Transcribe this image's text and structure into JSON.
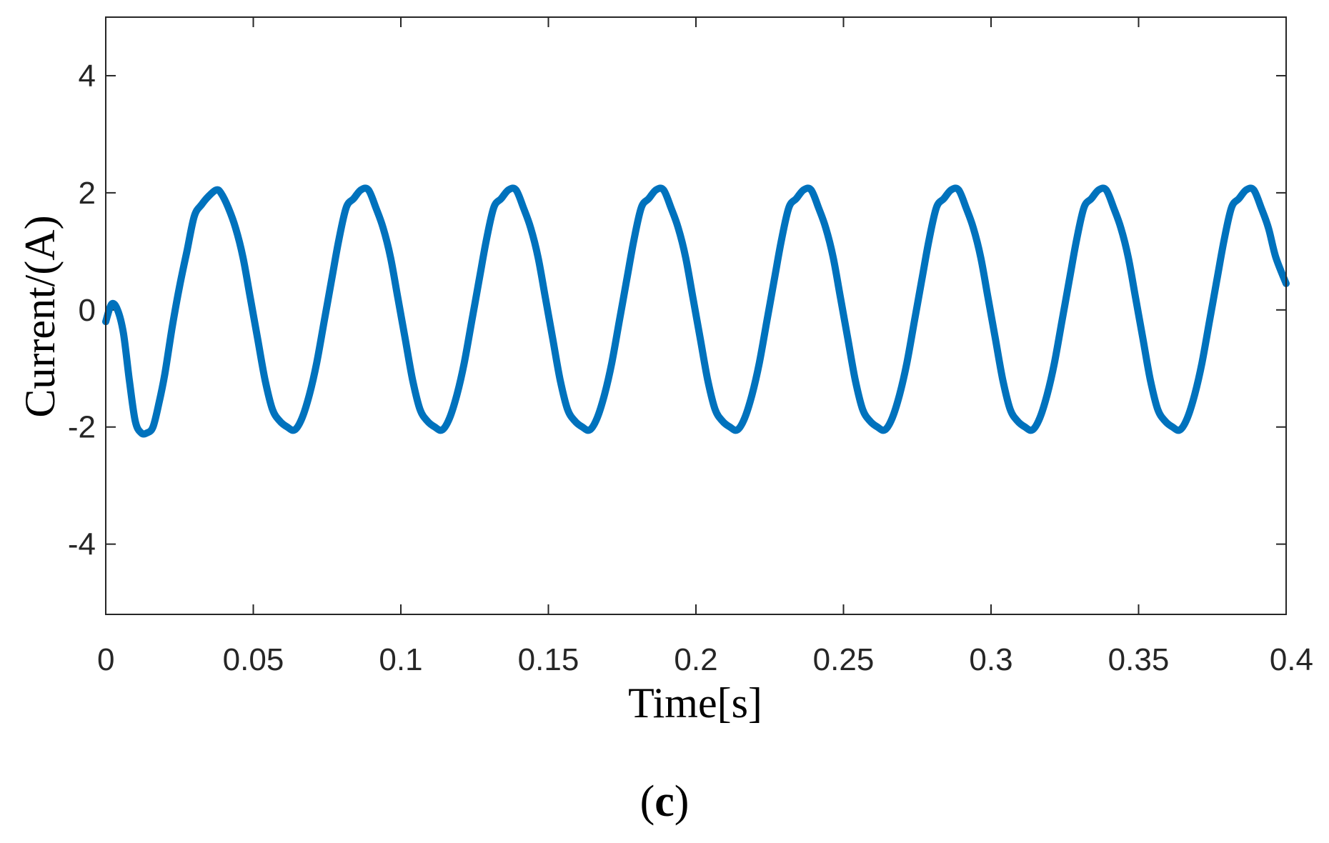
{
  "chart_data": {
    "type": "line",
    "title": "",
    "xlabel": "Time[s]",
    "ylabel": "Current/(A)",
    "xlim": [
      0,
      0.4
    ],
    "ylim": [
      -5.2,
      5
    ],
    "x_ticks": [
      0,
      0.05,
      0.1,
      0.15,
      0.2,
      0.25,
      0.3,
      0.35,
      0.4
    ],
    "x_tick_labels": [
      "0",
      "0.05",
      "0.1",
      "0.15",
      "0.2",
      "0.25",
      "0.3",
      "0.35",
      "0.4"
    ],
    "y_ticks": [
      4,
      2,
      0,
      -2,
      -4
    ],
    "y_tick_labels": [
      "4",
      "2",
      "0",
      "-2",
      "-4"
    ],
    "grid": false,
    "line_color": "#0072BD",
    "series": [
      {
        "x": [
          0,
          0.002,
          0.004,
          0.006,
          0.008,
          0.01,
          0.012,
          0.014,
          0.016,
          0.018,
          0.02,
          0.0225,
          0.025,
          0.0275,
          0.03,
          0.0325,
          0.035,
          0.0375,
          0.039,
          0.0415,
          0.044,
          0.0465,
          0.049,
          0.0515,
          0.054,
          0.0565,
          0.059,
          0.0615,
          0.064,
          0.0665,
          0.069,
          0.0715,
          0.074,
          0.0765,
          0.079,
          0.0815,
          0.084,
          0.0865,
          0.089,
          0.0915,
          0.094,
          0.0965,
          0.099,
          0.1015,
          0.104,
          0.1065,
          0.109,
          0.1115,
          0.114,
          0.1165,
          0.119,
          0.1215,
          0.124,
          0.1265,
          0.129,
          0.1315,
          0.134,
          0.1365,
          0.139,
          0.1415,
          0.144,
          0.1465,
          0.149,
          0.1515,
          0.154,
          0.1565,
          0.159,
          0.1615,
          0.164,
          0.1665,
          0.169,
          0.1715,
          0.174,
          0.1765,
          0.179,
          0.1815,
          0.184,
          0.1865,
          0.189,
          0.1915,
          0.194,
          0.1965,
          0.199,
          0.2015,
          0.204,
          0.2065,
          0.209,
          0.2115,
          0.214,
          0.2165,
          0.219,
          0.2215,
          0.224,
          0.2265,
          0.229,
          0.2315,
          0.234,
          0.2365,
          0.239,
          0.2415,
          0.244,
          0.2465,
          0.249,
          0.2515,
          0.254,
          0.2565,
          0.259,
          0.2615,
          0.264,
          0.2665,
          0.269,
          0.2715,
          0.274,
          0.2765,
          0.279,
          0.2815,
          0.284,
          0.2865,
          0.289,
          0.2915,
          0.294,
          0.2965,
          0.299,
          0.3015,
          0.304,
          0.3065,
          0.309,
          0.3115,
          0.314,
          0.3165,
          0.319,
          0.3215,
          0.324,
          0.3265,
          0.329,
          0.3315,
          0.334,
          0.3365,
          0.339,
          0.3415,
          0.344,
          0.3465,
          0.349,
          0.3515,
          0.354,
          0.3565,
          0.359,
          0.3615,
          0.364,
          0.3665,
          0.369,
          0.3715,
          0.374,
          0.3765,
          0.379,
          0.3815,
          0.384,
          0.3865,
          0.389,
          0.3915,
          0.394,
          0.3965,
          0.4
        ],
        "y": [
          -0.2,
          0.1,
          0.0,
          -0.4,
          -1.2,
          -1.9,
          -2.1,
          -2.1,
          -2.0,
          -1.6,
          -1.1,
          -0.3,
          0.4,
          1.0,
          1.6,
          1.8,
          1.95,
          2.05,
          2.0,
          1.75,
          1.4,
          0.9,
          0.2,
          -0.5,
          -1.2,
          -1.7,
          -1.9,
          -2.0,
          -2.05,
          -1.85,
          -1.45,
          -0.9,
          -0.2,
          0.5,
          1.2,
          1.75,
          1.9,
          2.05,
          2.05,
          1.75,
          1.4,
          0.9,
          0.2,
          -0.5,
          -1.2,
          -1.7,
          -1.9,
          -2.0,
          -2.05,
          -1.85,
          -1.45,
          -0.9,
          -0.2,
          0.5,
          1.2,
          1.75,
          1.9,
          2.05,
          2.05,
          1.75,
          1.4,
          0.9,
          0.2,
          -0.5,
          -1.2,
          -1.7,
          -1.9,
          -2.0,
          -2.05,
          -1.85,
          -1.45,
          -0.9,
          -0.2,
          0.5,
          1.2,
          1.75,
          1.9,
          2.05,
          2.05,
          1.75,
          1.4,
          0.9,
          0.2,
          -0.5,
          -1.2,
          -1.7,
          -1.9,
          -2.0,
          -2.05,
          -1.85,
          -1.45,
          -0.9,
          -0.2,
          0.5,
          1.2,
          1.75,
          1.9,
          2.05,
          2.05,
          1.75,
          1.4,
          0.9,
          0.2,
          -0.5,
          -1.2,
          -1.7,
          -1.9,
          -2.0,
          -2.05,
          -1.85,
          -1.45,
          -0.9,
          -0.2,
          0.5,
          1.2,
          1.75,
          1.9,
          2.05,
          2.05,
          1.75,
          1.4,
          0.9,
          0.2,
          -0.5,
          -1.2,
          -1.7,
          -1.9,
          -2.0,
          -2.05,
          -1.85,
          -1.45,
          -0.9,
          -0.2,
          0.5,
          1.2,
          1.75,
          1.9,
          2.05,
          2.05,
          1.75,
          1.4,
          0.9,
          0.2,
          -0.5,
          -1.2,
          -1.7,
          -1.9,
          -2.0,
          -2.05,
          -1.85,
          -1.45,
          -0.9,
          -0.2,
          0.5,
          1.2,
          1.75,
          1.9,
          2.05,
          2.05,
          1.75,
          1.4,
          0.9,
          0.45
        ]
      }
    ]
  },
  "panel_label": {
    "open": "(",
    "letter": "c",
    "close": ")"
  }
}
